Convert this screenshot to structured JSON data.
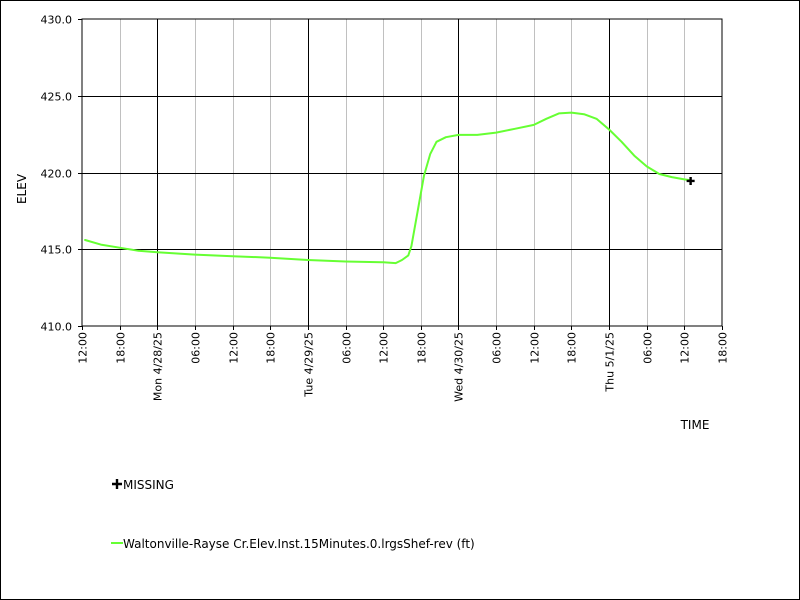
{
  "chart_data": {
    "type": "line",
    "x_axis_title": "TIME",
    "y_axis_title": "ELEV",
    "y_range": [
      410.0,
      430.0
    ],
    "y_ticks": [
      "410.0",
      "415.0",
      "420.0",
      "425.0",
      "430.0"
    ],
    "x_ticks": [
      "12:00",
      "18:00",
      "Mon 4/28/25",
      "06:00",
      "12:00",
      "18:00",
      "Tue 4/29/25",
      "06:00",
      "12:00",
      "18:00",
      "Wed 4/30/25",
      "06:00",
      "12:00",
      "18:00",
      "Thu 5/1/25",
      "06:00",
      "12:00",
      "18:00"
    ],
    "x_range_hours_from_first_tick": [
      0,
      102
    ],
    "grid": true,
    "series": [
      {
        "name": "Waltonville-Rayse Cr.Elev.Inst.15Minutes.0.lrgsShef-rev (ft)",
        "color": "#66ff33",
        "points": [
          [
            0.5,
            415.6
          ],
          [
            3,
            415.3
          ],
          [
            6,
            415.1
          ],
          [
            9,
            414.9
          ],
          [
            12,
            414.8
          ],
          [
            18,
            414.65
          ],
          [
            24,
            414.55
          ],
          [
            30,
            414.45
          ],
          [
            36,
            414.3
          ],
          [
            42,
            414.2
          ],
          [
            48,
            414.15
          ],
          [
            50,
            414.1
          ],
          [
            51,
            414.3
          ],
          [
            52,
            414.6
          ],
          [
            52.5,
            415.2
          ],
          [
            53.5,
            417.5
          ],
          [
            54.5,
            419.8
          ],
          [
            55.5,
            421.2
          ],
          [
            56.5,
            422.0
          ],
          [
            58,
            422.3
          ],
          [
            60,
            422.45
          ],
          [
            63,
            422.45
          ],
          [
            66,
            422.6
          ],
          [
            69,
            422.85
          ],
          [
            72,
            423.1
          ],
          [
            74,
            423.5
          ],
          [
            76,
            423.85
          ],
          [
            78,
            423.9
          ],
          [
            80,
            423.8
          ],
          [
            82,
            423.5
          ],
          [
            84,
            422.8
          ],
          [
            86,
            422.0
          ],
          [
            88,
            421.1
          ],
          [
            90,
            420.4
          ],
          [
            92,
            419.9
          ],
          [
            94,
            419.7
          ],
          [
            96,
            419.55
          ],
          [
            97,
            419.5
          ]
        ]
      }
    ],
    "missing_points": [
      [
        97,
        419.45
      ]
    ],
    "legend": [
      {
        "label": "MISSING",
        "symbol": "plus"
      },
      {
        "label": "Waltonville-Rayse Cr.Elev.Inst.15Minutes.0.lrgsShef-rev (ft)",
        "symbol": "line",
        "color": "#66ff33"
      }
    ]
  }
}
